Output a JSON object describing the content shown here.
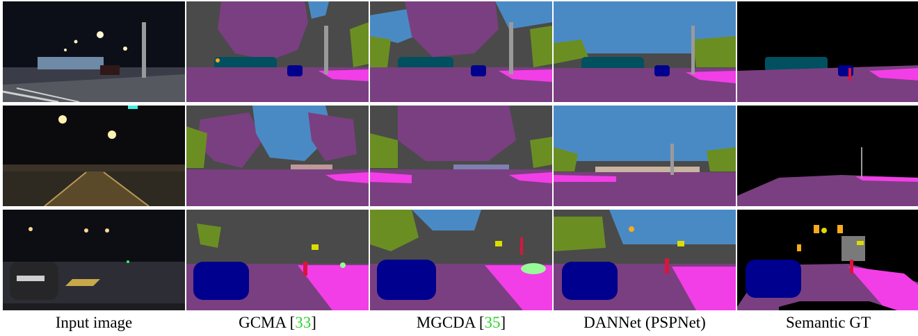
{
  "captions": {
    "col1": {
      "text": "Input image"
    },
    "col2": {
      "text": "GCMA ",
      "bracket_open": "[",
      "ref": "33",
      "bracket_close": "]"
    },
    "col3": {
      "text": "MGCDA ",
      "bracket_open": "[",
      "ref": "35",
      "bracket_close": "]"
    },
    "col4": {
      "text": "DANNet (PSPNet)"
    },
    "col5": {
      "text": "Semantic GT"
    }
  },
  "colors": {
    "road": "#7a3f80",
    "sidewalk": "#f23ee6",
    "building": "#4a4a4a",
    "sky": "#4a8ac4",
    "vegetation": "#6b8e23",
    "car": "#00008e",
    "truck": "#00505f",
    "pole": "#9a9a9a",
    "traffic_sign": "#dcdc00",
    "traffic_light": "#faaa1e",
    "person": "#dc143c",
    "terrain": "#98fb98",
    "fence": "#be9999",
    "void": "#000000",
    "citation": "#2bd42b"
  }
}
